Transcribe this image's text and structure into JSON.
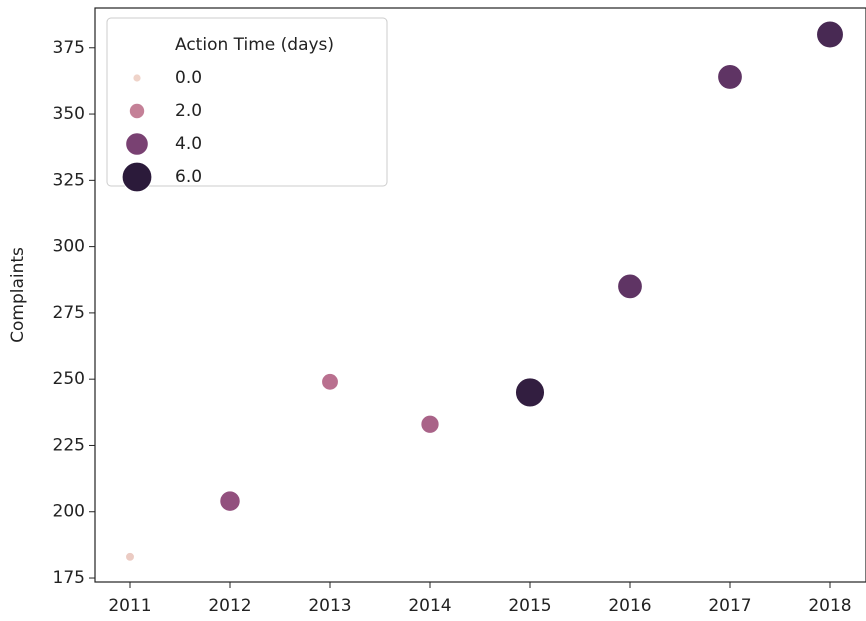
{
  "chart_data": {
    "type": "scatter",
    "y_label": "Complaints",
    "x": [
      2011,
      2012,
      2013,
      2014,
      2015,
      2016,
      2017,
      2018
    ],
    "values": [
      183,
      204,
      249,
      233,
      245,
      285,
      364,
      380
    ],
    "sizes": [
      0.2,
      3.4,
      2.4,
      2.8,
      5.8,
      4.6,
      4.6,
      5.2
    ],
    "xlim": [
      2010.65,
      2018.36
    ],
    "xticks": [
      2011,
      2012,
      2013,
      2014,
      2015,
      2016,
      2017,
      2018
    ],
    "ylim": [
      173.5,
      390
    ],
    "yticks": [
      175,
      200,
      225,
      250,
      275,
      300,
      325,
      350,
      375
    ],
    "color_scale": [
      "#efd3c9",
      "#d9a0a6",
      "#b9708f",
      "#8a4a7b",
      "#56305f",
      "#2b1a3a"
    ],
    "legend": {
      "position": "upper left",
      "title": "Action Time (days)",
      "entries": [
        {
          "value": 0,
          "label": "0.0"
        },
        {
          "value": 2,
          "label": "2.0"
        },
        {
          "value": 4,
          "label": "4.0"
        },
        {
          "value": 6,
          "label": "6.0"
        }
      ]
    }
  }
}
